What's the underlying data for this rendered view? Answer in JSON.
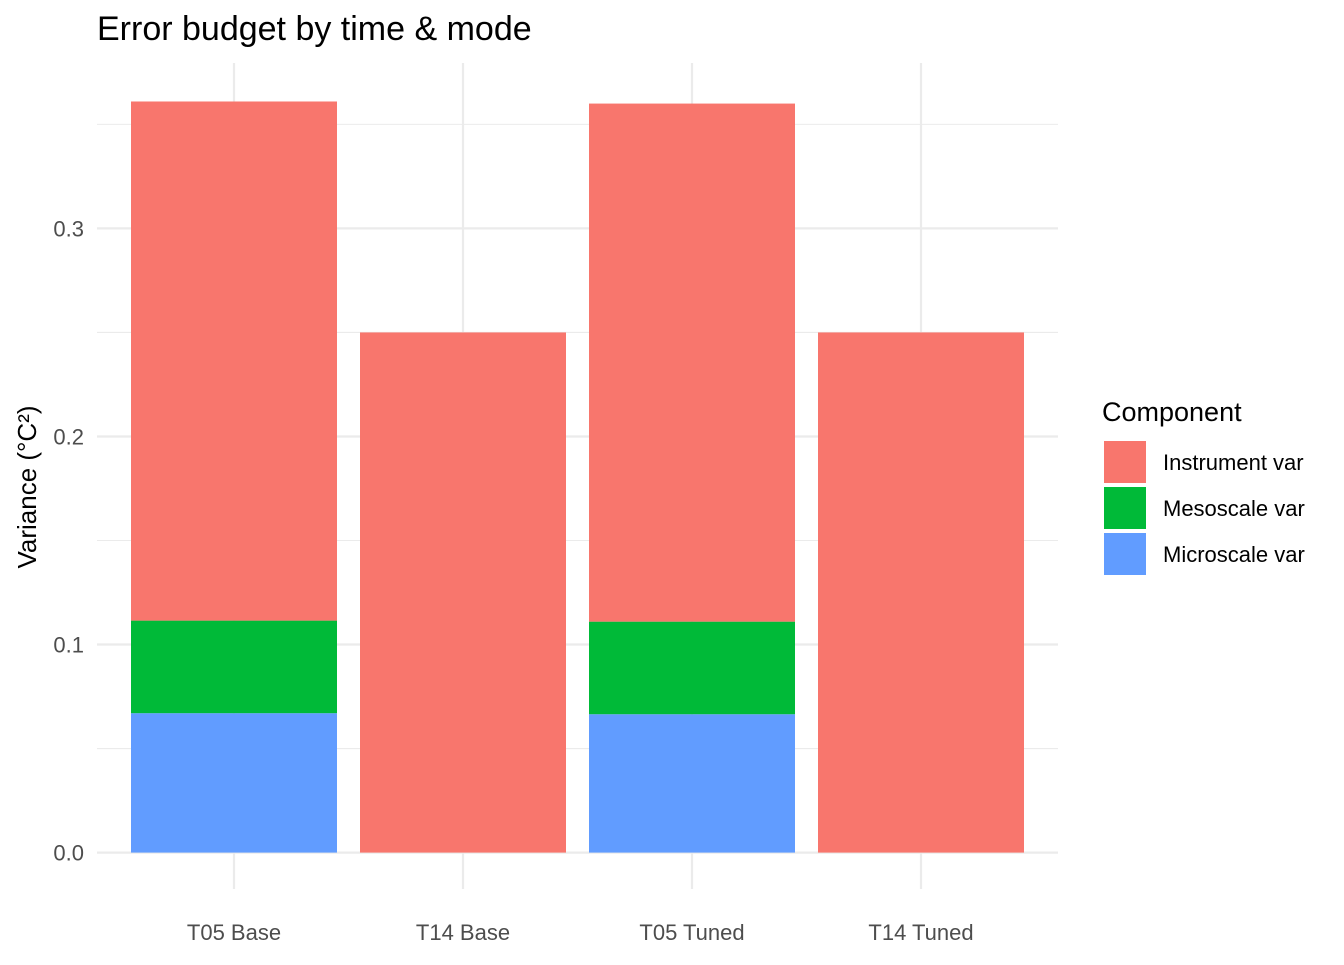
{
  "chart_data": {
    "type": "bar",
    "stacked": true,
    "title": "Error budget by time & mode",
    "xlabel": "",
    "ylabel": "Variance (°C²)",
    "categories": [
      "T05 Base",
      "T14 Base",
      "T05 Tuned",
      "T14 Tuned"
    ],
    "ylim": [
      -0.0175,
      0.3795
    ],
    "y_ticks": [
      0.0,
      0.1,
      0.2,
      0.3
    ],
    "y_tick_labels": [
      "0.0",
      "0.1",
      "0.2",
      "0.3"
    ],
    "grid": true,
    "legend": {
      "title": "Component",
      "placement": "right"
    },
    "series": [
      {
        "name": "Microscale var",
        "color": "#619CFF",
        "values": [
          0.067,
          0.0,
          0.0665,
          0.0
        ]
      },
      {
        "name": "Mesoscale var",
        "color": "#00BA38",
        "values": [
          0.0445,
          0.0,
          0.0445,
          0.0
        ]
      },
      {
        "name": "Instrument var",
        "color": "#F8766D",
        "values": [
          0.2495,
          0.25,
          0.249,
          0.25
        ]
      }
    ],
    "legend_order": [
      "Instrument var",
      "Mesoscale var",
      "Microscale var"
    ]
  }
}
